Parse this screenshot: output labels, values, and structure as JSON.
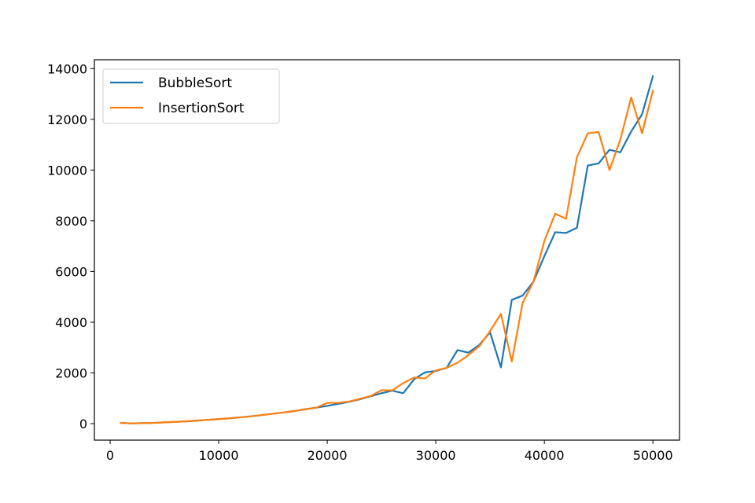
{
  "chart_data": {
    "type": "line",
    "title": "",
    "xlabel": "",
    "ylabel": "",
    "xlim": [
      -1450,
      52450
    ],
    "ylim": [
      -650,
      14350
    ],
    "xticks": [
      0,
      10000,
      20000,
      30000,
      40000,
      50000
    ],
    "yticks": [
      0,
      2000,
      4000,
      6000,
      8000,
      10000,
      12000,
      14000
    ],
    "grid": false,
    "legend": "upper-left",
    "x": [
      1000,
      2000,
      3000,
      4000,
      5000,
      6000,
      7000,
      8000,
      9000,
      10000,
      11000,
      12000,
      13000,
      14000,
      15000,
      16000,
      17000,
      18000,
      19000,
      20000,
      21000,
      22000,
      23000,
      24000,
      25000,
      26000,
      27000,
      28000,
      29000,
      30000,
      31000,
      32000,
      33000,
      34000,
      35000,
      36000,
      37000,
      38000,
      39000,
      40000,
      41000,
      42000,
      43000,
      44000,
      45000,
      46000,
      47000,
      48000,
      49000,
      50000
    ],
    "series": [
      {
        "name": "BubbleSort",
        "color": "#1f77b4",
        "values": [
          30,
          10,
          20,
          30,
          50,
          70,
          90,
          120,
          150,
          180,
          210,
          250,
          290,
          340,
          390,
          440,
          500,
          570,
          630,
          700,
          780,
          860,
          960,
          1080,
          1200,
          1300,
          1200,
          1750,
          2020,
          2080,
          2200,
          2900,
          2800,
          3100,
          3600,
          2220,
          4880,
          5050,
          5600,
          6600,
          7550,
          7520,
          7720,
          10180,
          10260,
          10800,
          10700,
          11520,
          12200,
          13700
        ]
      },
      {
        "name": "InsertionSort",
        "color": "#ff7f0e",
        "values": [
          30,
          10,
          20,
          30,
          50,
          70,
          90,
          120,
          150,
          180,
          210,
          250,
          290,
          340,
          390,
          440,
          500,
          570,
          630,
          820,
          820,
          870,
          980,
          1090,
          1320,
          1310,
          1600,
          1820,
          1780,
          2100,
          2200,
          2400,
          2700,
          3050,
          3650,
          4330,
          2450,
          4760,
          5600,
          7200,
          8280,
          8080,
          10500,
          11450,
          11500,
          10000,
          11200,
          12860,
          11450,
          13130
        ]
      }
    ]
  }
}
